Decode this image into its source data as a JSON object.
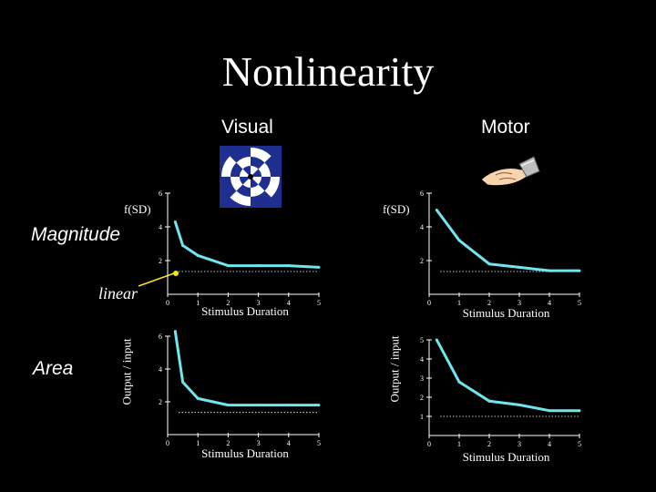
{
  "title": "Nonlinearity",
  "columns": {
    "visual": "Visual",
    "motor": "Motor"
  },
  "rows": {
    "magnitude": "Magnitude",
    "area": "Area",
    "linear": "linear"
  },
  "ylabels": {
    "fsd_left": "f(SD)",
    "fsd_right": "f(SD)",
    "output_left": "Output / input",
    "output_right": "Output / input"
  },
  "colors": {
    "background": "#000000",
    "curve": "#6fe6ee",
    "axis": "#ffffff",
    "reference": "#ffffff",
    "arrow": "#f5e60a",
    "icon_blue": "#1f2f8f"
  },
  "icons": {
    "visual_stimulus": "checkerboard-stimulus-icon",
    "motor_stimulus": "hand-icon"
  },
  "chart_data": [
    {
      "id": "visual-magnitude",
      "type": "line",
      "xlabel": "Stimulus Duration",
      "ylabel": "f(SD)",
      "xlim": [
        0,
        5
      ],
      "ylim": [
        0,
        6
      ],
      "xticks": [
        "0",
        "1",
        "2",
        "3",
        "4",
        "5"
      ],
      "yticks": [
        {
          "v": 2,
          "label": "2"
        },
        {
          "v": 4,
          "label": "4"
        },
        {
          "v": 6,
          "label": "6"
        }
      ],
      "series": [
        {
          "x": [
            0.25,
            0.5,
            1,
            2,
            3,
            4,
            5
          ],
          "y": [
            4.3,
            2.9,
            2.3,
            1.7,
            1.7,
            1.7,
            1.6
          ]
        }
      ],
      "reference_y": 1.35
    },
    {
      "id": "motor-magnitude",
      "type": "line",
      "xlabel": "Stimulus Duration",
      "ylabel": "f(SD)",
      "xlim": [
        0,
        5
      ],
      "ylim": [
        0,
        6
      ],
      "xticks": [
        "0",
        "1",
        "2",
        "3",
        "4",
        "5"
      ],
      "yticks": [
        {
          "v": 2,
          "label": "2"
        },
        {
          "v": 4,
          "label": "4"
        },
        {
          "v": 6,
          "label": "6"
        }
      ],
      "series": [
        {
          "x": [
            0.25,
            1,
            2,
            3,
            4,
            5
          ],
          "y": [
            5.0,
            3.2,
            1.8,
            1.6,
            1.4,
            1.4
          ]
        }
      ],
      "reference_y": 1.35
    },
    {
      "id": "visual-area",
      "type": "line",
      "xlabel": "Stimulus Duration",
      "ylabel": "Output / input",
      "xlim": [
        0,
        5
      ],
      "ylim": [
        0,
        6
      ],
      "xticks": [
        "0",
        "1",
        "2",
        "3",
        "4",
        "5"
      ],
      "yticks": [
        {
          "v": 2,
          "label": "2"
        },
        {
          "v": 4,
          "label": "4"
        },
        {
          "v": 6,
          "label": "6"
        }
      ],
      "series": [
        {
          "x": [
            0.25,
            0.5,
            1,
            2,
            3,
            4,
            5
          ],
          "y": [
            6.3,
            3.2,
            2.2,
            1.8,
            1.8,
            1.8,
            1.8
          ]
        }
      ],
      "reference_y": 1.35
    },
    {
      "id": "motor-area",
      "type": "line",
      "xlabel": "Stimulus Duration",
      "ylabel": "Output / input",
      "xlim": [
        0,
        5
      ],
      "ylim": [
        0,
        5
      ],
      "xticks": [
        "0",
        "1",
        "2",
        "3",
        "4",
        "5"
      ],
      "yticks": [
        {
          "v": 1,
          "label": "1"
        },
        {
          "v": 2,
          "label": "2"
        },
        {
          "v": 3,
          "label": "3"
        },
        {
          "v": 4,
          "label": "4"
        },
        {
          "v": 5,
          "label": "5"
        }
      ],
      "series": [
        {
          "x": [
            0.25,
            1,
            2,
            3,
            4,
            5
          ],
          "y": [
            5.0,
            2.8,
            1.8,
            1.6,
            1.3,
            1.3
          ]
        }
      ],
      "reference_y": 1.0
    }
  ]
}
